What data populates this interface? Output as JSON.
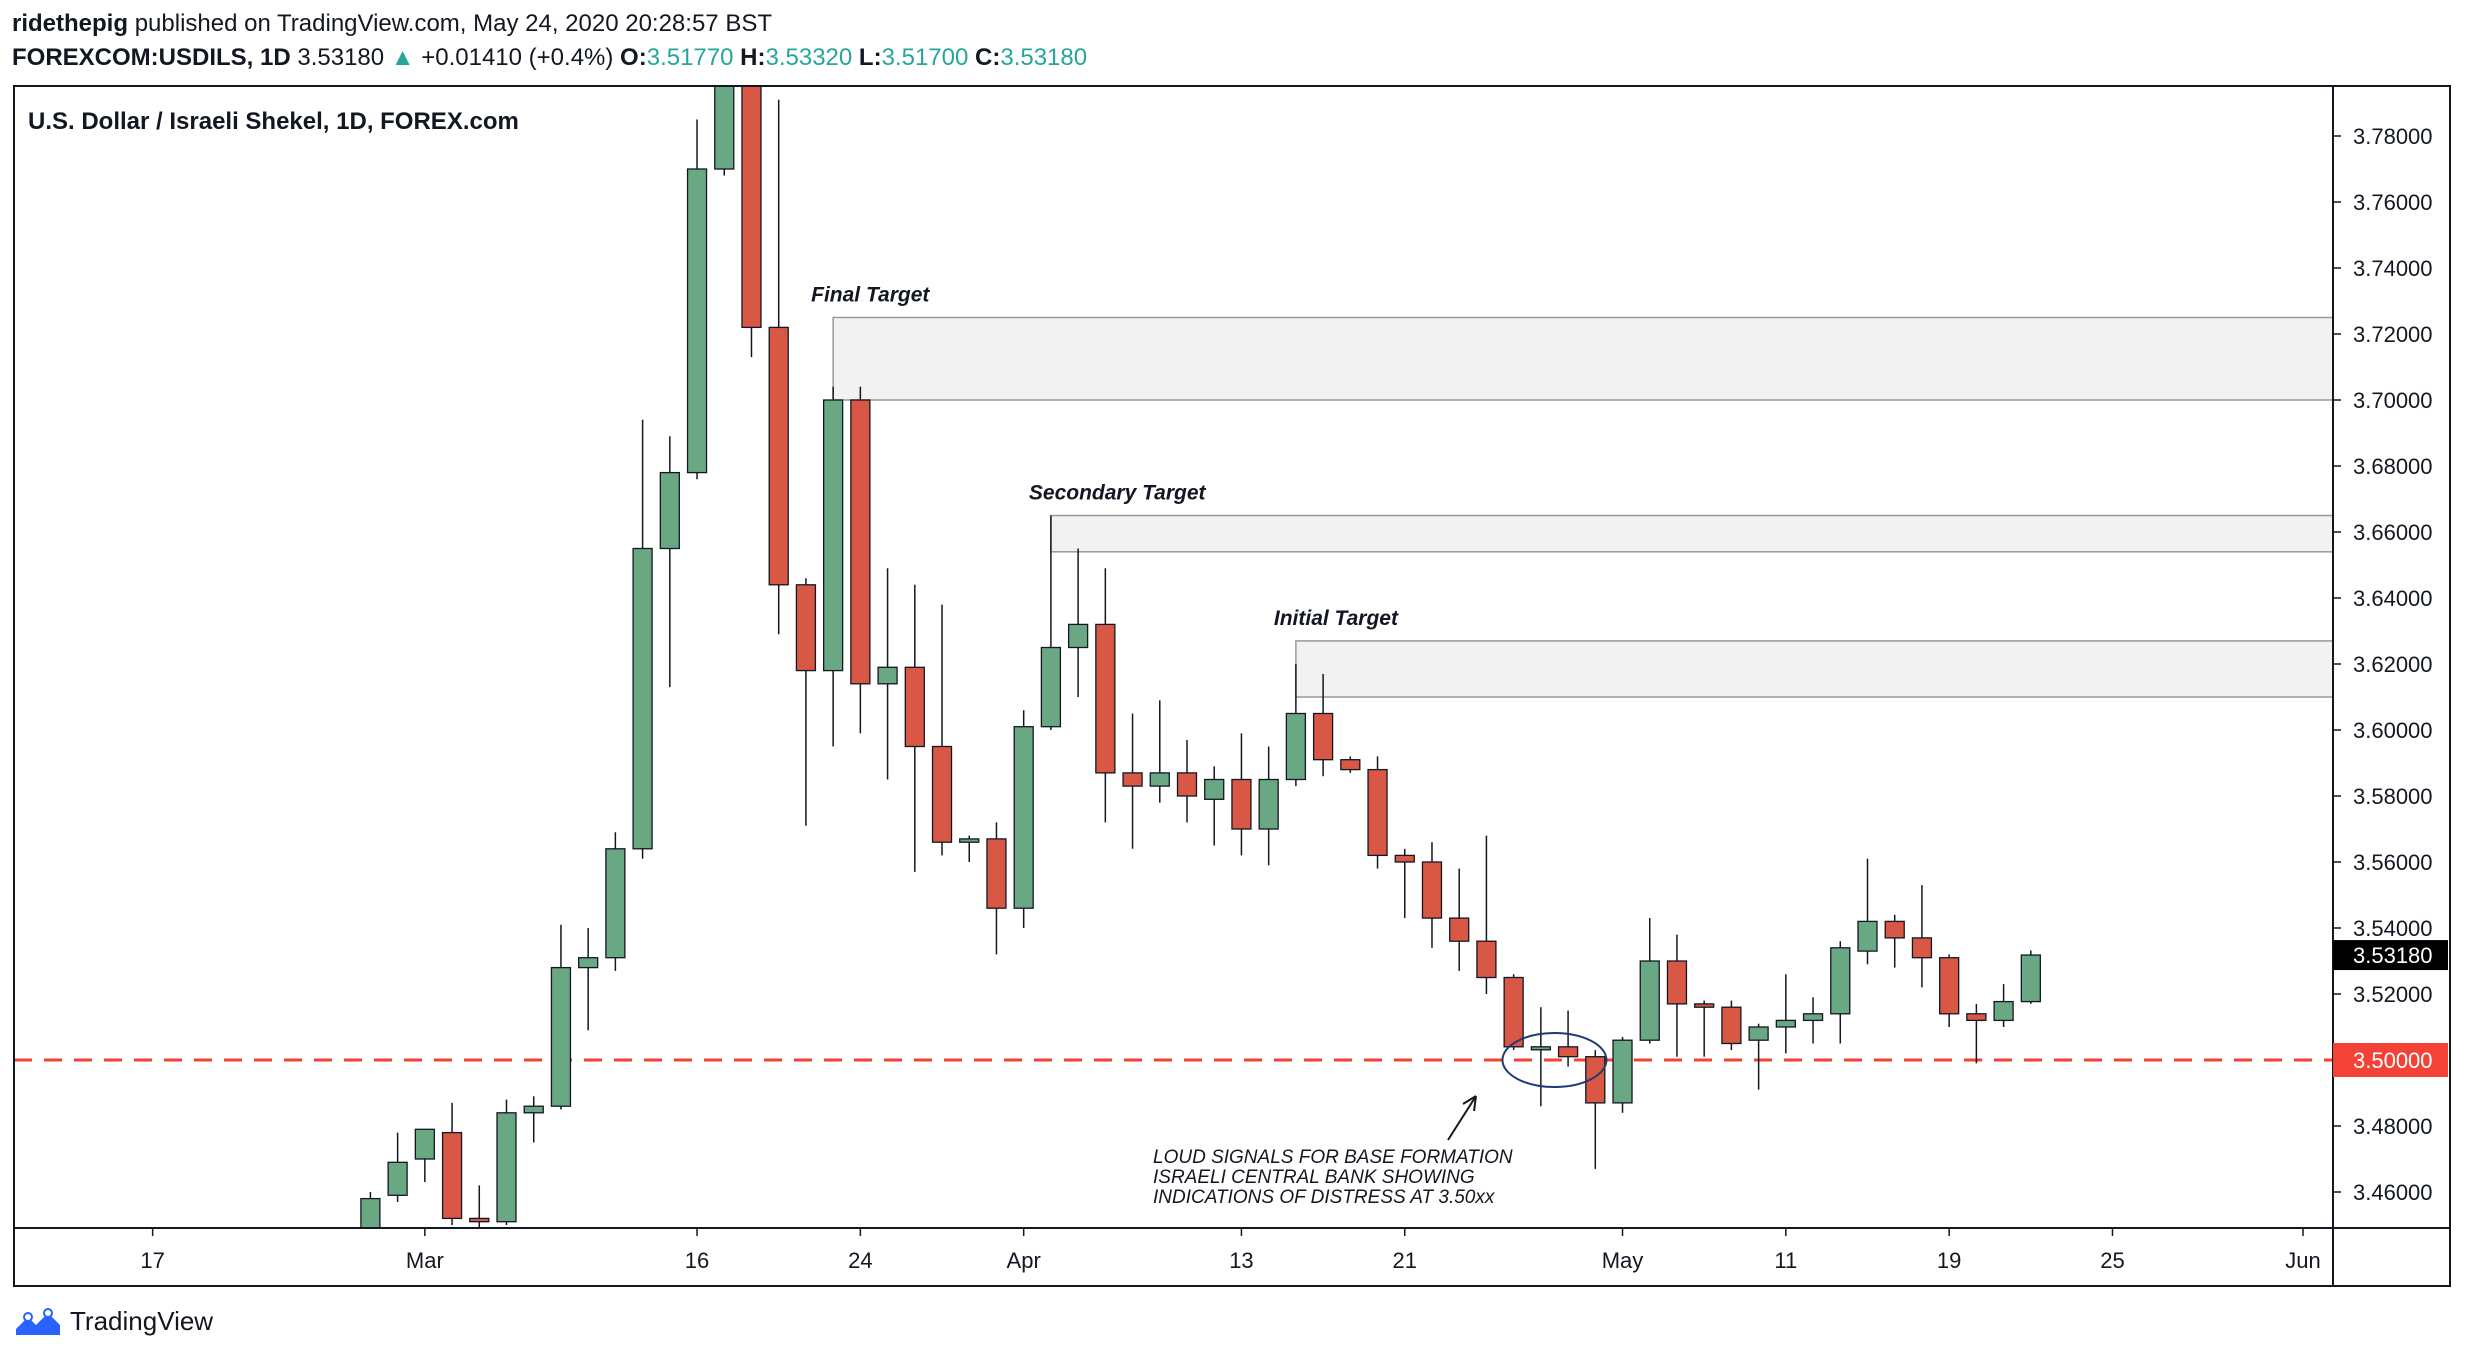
{
  "header": {
    "author": "ridethepig",
    "published": "published on TradingView.com, May 24, 2020 20:28:57 BST",
    "symbol": "FOREXCOM:USDILS, 1D",
    "last": "3.53180",
    "change": "+0.01410 (+0.4%)",
    "o_label": "O:",
    "o": "3.51770",
    "h_label": "H:",
    "h": "3.53320",
    "l_label": "L:",
    "l": "3.51700",
    "c_label": "C:",
    "c": "3.53180"
  },
  "brand": {
    "name": "TradingView",
    "icon": "tradingview-logo-icon"
  },
  "chart_data": {
    "type": "candlestick",
    "title": "U.S. Dollar / Israeli Shekel, 1D, FOREX.com",
    "ylim": [
      3.4475,
      3.795
    ],
    "y_ticks": [
      "3.46000",
      "3.48000",
      "3.50000",
      "3.52000",
      "3.54000",
      "3.56000",
      "3.58000",
      "3.60000",
      "3.62000",
      "3.64000",
      "3.66000",
      "3.68000",
      "3.70000",
      "3.72000",
      "3.74000",
      "3.76000",
      "3.78000"
    ],
    "x_ticks": [
      {
        "label": "17",
        "bar": -8
      },
      {
        "label": "Mar",
        "bar": 2
      },
      {
        "label": "16",
        "bar": 12
      },
      {
        "label": "24",
        "bar": 18
      },
      {
        "label": "Apr",
        "bar": 24
      },
      {
        "label": "13",
        "bar": 32
      },
      {
        "label": "21",
        "bar": 38
      },
      {
        "label": "May",
        "bar": 46
      },
      {
        "label": "11",
        "bar": 52
      },
      {
        "label": "19",
        "bar": 58
      },
      {
        "label": "25",
        "bar": 64
      },
      {
        "label": "Jun",
        "bar": 71
      }
    ],
    "candles": [
      {
        "o": 3.448,
        "h": 3.46,
        "l": 3.444,
        "c": 3.458
      },
      {
        "o": 3.459,
        "h": 3.478,
        "l": 3.457,
        "c": 3.469
      },
      {
        "o": 3.47,
        "h": 3.479,
        "l": 3.463,
        "c": 3.479
      },
      {
        "o": 3.478,
        "h": 3.487,
        "l": 3.45,
        "c": 3.452
      },
      {
        "o": 3.452,
        "h": 3.462,
        "l": 3.449,
        "c": 3.451
      },
      {
        "o": 3.451,
        "h": 3.488,
        "l": 3.45,
        "c": 3.484
      },
      {
        "o": 3.484,
        "h": 3.489,
        "l": 3.475,
        "c": 3.486
      },
      {
        "o": 3.486,
        "h": 3.541,
        "l": 3.485,
        "c": 3.528
      },
      {
        "o": 3.528,
        "h": 3.54,
        "l": 3.509,
        "c": 3.531
      },
      {
        "o": 3.531,
        "h": 3.569,
        "l": 3.527,
        "c": 3.564
      },
      {
        "o": 3.564,
        "h": 3.694,
        "l": 3.561,
        "c": 3.655
      },
      {
        "o": 3.655,
        "h": 3.689,
        "l": 3.613,
        "c": 3.678
      },
      {
        "o": 3.678,
        "h": 3.785,
        "l": 3.676,
        "c": 3.77
      },
      {
        "o": 3.77,
        "h": 3.8,
        "l": 3.768,
        "c": 3.8
      },
      {
        "o": 3.8,
        "h": 3.8,
        "l": 3.713,
        "c": 3.722
      },
      {
        "o": 3.722,
        "h": 3.791,
        "l": 3.629,
        "c": 3.644
      },
      {
        "o": 3.644,
        "h": 3.646,
        "l": 3.571,
        "c": 3.618
      },
      {
        "o": 3.618,
        "h": 3.704,
        "l": 3.595,
        "c": 3.7
      },
      {
        "o": 3.7,
        "h": 3.704,
        "l": 3.599,
        "c": 3.614
      },
      {
        "o": 3.614,
        "h": 3.649,
        "l": 3.585,
        "c": 3.619
      },
      {
        "o": 3.619,
        "h": 3.644,
        "l": 3.557,
        "c": 3.595
      },
      {
        "o": 3.595,
        "h": 3.638,
        "l": 3.562,
        "c": 3.566
      },
      {
        "o": 3.566,
        "h": 3.568,
        "l": 3.56,
        "c": 3.567
      },
      {
        "o": 3.567,
        "h": 3.572,
        "l": 3.532,
        "c": 3.546
      },
      {
        "o": 3.546,
        "h": 3.606,
        "l": 3.54,
        "c": 3.601
      },
      {
        "o": 3.601,
        "h": 3.665,
        "l": 3.6,
        "c": 3.625
      },
      {
        "o": 3.625,
        "h": 3.655,
        "l": 3.61,
        "c": 3.632
      },
      {
        "o": 3.632,
        "h": 3.649,
        "l": 3.572,
        "c": 3.587
      },
      {
        "o": 3.587,
        "h": 3.605,
        "l": 3.564,
        "c": 3.583
      },
      {
        "o": 3.583,
        "h": 3.609,
        "l": 3.578,
        "c": 3.587
      },
      {
        "o": 3.587,
        "h": 3.597,
        "l": 3.572,
        "c": 3.58
      },
      {
        "o": 3.579,
        "h": 3.589,
        "l": 3.565,
        "c": 3.585
      },
      {
        "o": 3.585,
        "h": 3.599,
        "l": 3.562,
        "c": 3.57
      },
      {
        "o": 3.57,
        "h": 3.595,
        "l": 3.559,
        "c": 3.585
      },
      {
        "o": 3.585,
        "h": 3.62,
        "l": 3.583,
        "c": 3.605
      },
      {
        "o": 3.605,
        "h": 3.617,
        "l": 3.586,
        "c": 3.591
      },
      {
        "o": 3.591,
        "h": 3.592,
        "l": 3.587,
        "c": 3.588
      },
      {
        "o": 3.588,
        "h": 3.592,
        "l": 3.558,
        "c": 3.562
      },
      {
        "o": 3.562,
        "h": 3.564,
        "l": 3.543,
        "c": 3.56
      },
      {
        "o": 3.56,
        "h": 3.566,
        "l": 3.534,
        "c": 3.543
      },
      {
        "o": 3.543,
        "h": 3.558,
        "l": 3.527,
        "c": 3.536
      },
      {
        "o": 3.536,
        "h": 3.568,
        "l": 3.52,
        "c": 3.525
      },
      {
        "o": 3.525,
        "h": 3.526,
        "l": 3.503,
        "c": 3.504
      },
      {
        "o": 3.504,
        "h": 3.516,
        "l": 3.486,
        "c": 3.504
      },
      {
        "o": 3.504,
        "h": 3.515,
        "l": 3.498,
        "c": 3.501
      },
      {
        "o": 3.501,
        "h": 3.503,
        "l": 3.467,
        "c": 3.487
      },
      {
        "o": 3.487,
        "h": 3.507,
        "l": 3.484,
        "c": 3.506
      },
      {
        "o": 3.506,
        "h": 3.543,
        "l": 3.505,
        "c": 3.53
      },
      {
        "o": 3.53,
        "h": 3.538,
        "l": 3.501,
        "c": 3.517
      },
      {
        "o": 3.517,
        "h": 3.518,
        "l": 3.501,
        "c": 3.516
      },
      {
        "o": 3.516,
        "h": 3.518,
        "l": 3.503,
        "c": 3.505
      },
      {
        "o": 3.506,
        "h": 3.511,
        "l": 3.491,
        "c": 3.51
      },
      {
        "o": 3.51,
        "h": 3.526,
        "l": 3.502,
        "c": 3.512
      },
      {
        "o": 3.512,
        "h": 3.519,
        "l": 3.505,
        "c": 3.514
      },
      {
        "o": 3.514,
        "h": 3.536,
        "l": 3.505,
        "c": 3.534
      },
      {
        "o": 3.533,
        "h": 3.561,
        "l": 3.529,
        "c": 3.542
      },
      {
        "o": 3.542,
        "h": 3.544,
        "l": 3.528,
        "c": 3.537
      },
      {
        "o": 3.537,
        "h": 3.553,
        "l": 3.522,
        "c": 3.531
      },
      {
        "o": 3.531,
        "h": 3.532,
        "l": 3.51,
        "c": 3.514
      },
      {
        "o": 3.514,
        "h": 3.517,
        "l": 3.499,
        "c": 3.512
      },
      {
        "o": 3.512,
        "h": 3.523,
        "l": 3.51,
        "c": 3.5177
      },
      {
        "o": 3.5177,
        "h": 3.5332,
        "l": 3.517,
        "c": 3.5318
      }
    ],
    "zones": [
      {
        "label": "Final Target",
        "from_bar": 17,
        "low": 3.7,
        "high": 3.725
      },
      {
        "label": "Secondary Target",
        "from_bar": 25,
        "low": 3.654,
        "high": 3.665
      },
      {
        "label": "Initial Target",
        "from_bar": 34,
        "low": 3.61,
        "high": 3.627
      }
    ],
    "support_line": {
      "value": 3.5,
      "label": "3.50000",
      "color": "#f44336"
    },
    "last_price": {
      "value": 3.5318,
      "label": "3.53180"
    },
    "annotation": {
      "lines": [
        "LOUD SIGNALS FOR BASE FORMATION",
        "ISRAELI CENTRAL BANK SHOWING",
        "INDICATIONS OF DISTRESS AT 3.50xx"
      ]
    },
    "colors": {
      "up": "#6aa884",
      "down": "#d95845",
      "zone_fill": "#f2f2f2",
      "zone_stroke": "#999999",
      "axis": "#131722"
    }
  }
}
